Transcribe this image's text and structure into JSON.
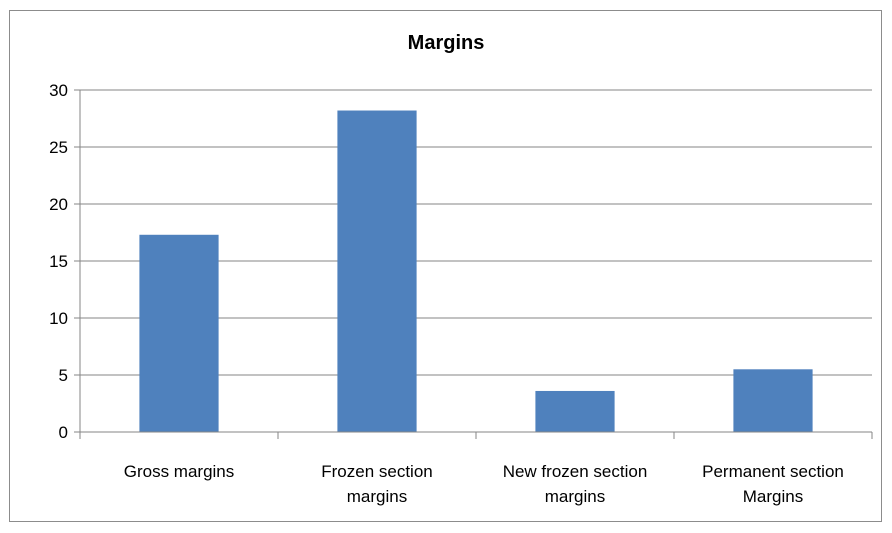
{
  "chart_data": {
    "type": "bar",
    "title": "Margins",
    "categories": [
      [
        "Gross margins"
      ],
      [
        "Frozen section",
        "margins"
      ],
      [
        "New frozen section",
        "margins"
      ],
      [
        "Permanent section",
        "Margins"
      ]
    ],
    "values": [
      17.3,
      28.2,
      3.6,
      5.5
    ],
    "ylim": [
      0,
      30
    ],
    "yticks": [
      "0",
      "5",
      "10",
      "15",
      "20",
      "25",
      "30"
    ],
    "xlabel": "",
    "ylabel": "",
    "grid": true,
    "legend": "none",
    "colors": {
      "bar": "#4f81bd",
      "grid": "#868686",
      "axis": "#868686"
    }
  }
}
